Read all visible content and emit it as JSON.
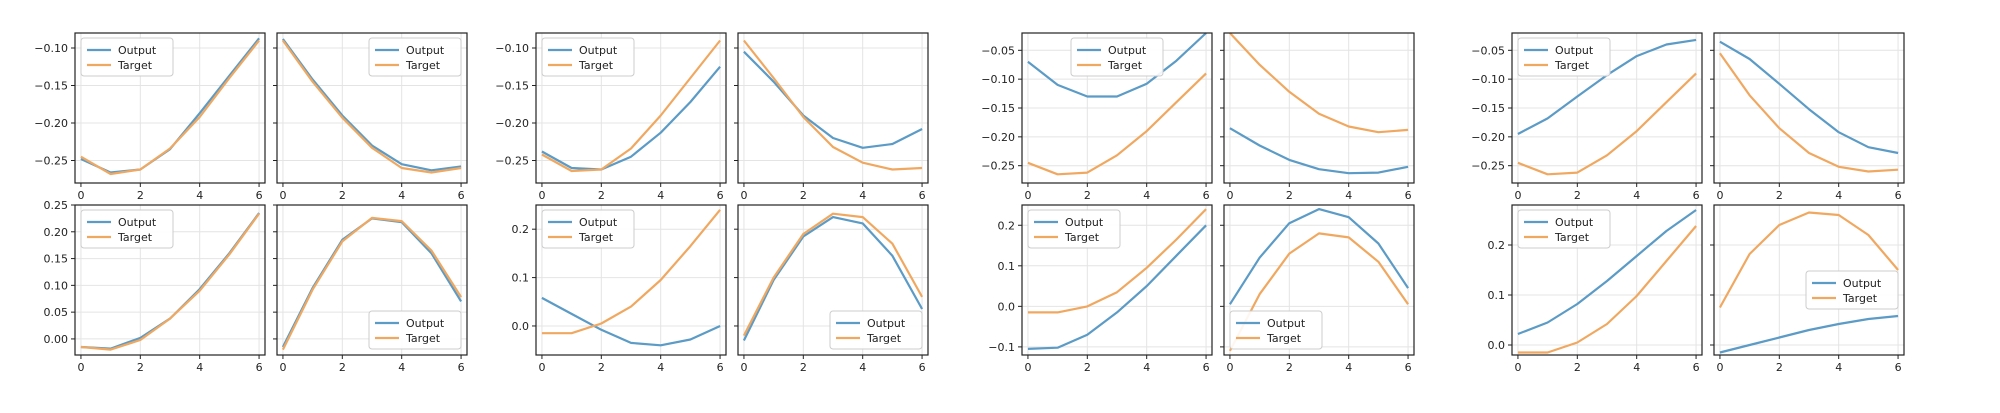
{
  "colors": {
    "output": "#5b9bc6",
    "target": "#f0a860",
    "grid": "#e4e4e4",
    "frame": "#222222"
  },
  "chart_data": [
    {
      "type": "line",
      "x": [
        0,
        1,
        2,
        3,
        4,
        5,
        6
      ],
      "ylim": [
        -0.28,
        -0.08
      ],
      "yticks": [
        -0.25,
        -0.2,
        -0.15,
        -0.1
      ],
      "show_yticks": true,
      "legend": "top-left",
      "series": [
        {
          "name": "Output",
          "values": [
            -0.248,
            -0.266,
            -0.262,
            -0.235,
            -0.187,
            -0.137,
            -0.087
          ]
        },
        {
          "name": "Target",
          "values": [
            -0.245,
            -0.268,
            -0.262,
            -0.234,
            -0.192,
            -0.14,
            -0.09
          ]
        }
      ]
    },
    {
      "type": "line",
      "x": [
        0,
        1,
        2,
        3,
        4,
        5,
        6
      ],
      "ylim": [
        -0.28,
        -0.08
      ],
      "show_yticks": false,
      "legend": "top-right",
      "series": [
        {
          "name": "Output",
          "values": [
            -0.088,
            -0.142,
            -0.19,
            -0.23,
            -0.255,
            -0.263,
            -0.258
          ]
        },
        {
          "name": "Target",
          "values": [
            -0.09,
            -0.145,
            -0.193,
            -0.233,
            -0.26,
            -0.266,
            -0.26
          ]
        }
      ]
    },
    {
      "type": "line",
      "x": [
        0,
        1,
        2,
        3,
        4,
        5,
        6
      ],
      "ylim": [
        -0.03,
        0.25
      ],
      "yticks": [
        0.0,
        0.05,
        0.1,
        0.15,
        0.2,
        0.25
      ],
      "show_yticks": true,
      "legend": "top-left",
      "series": [
        {
          "name": "Output",
          "values": [
            -0.015,
            -0.018,
            0.002,
            0.038,
            0.093,
            0.16,
            0.235
          ]
        },
        {
          "name": "Target",
          "values": [
            -0.015,
            -0.02,
            -0.002,
            0.038,
            0.09,
            0.158,
            0.234
          ]
        }
      ]
    },
    {
      "type": "line",
      "x": [
        0,
        1,
        2,
        3,
        4,
        5,
        6
      ],
      "ylim": [
        -0.03,
        0.25
      ],
      "show_yticks": false,
      "legend": "bottom-right",
      "series": [
        {
          "name": "Output",
          "values": [
            -0.015,
            0.095,
            0.185,
            0.225,
            0.218,
            0.16,
            0.07
          ]
        },
        {
          "name": "Target",
          "values": [
            -0.02,
            0.092,
            0.182,
            0.226,
            0.22,
            0.165,
            0.078
          ]
        }
      ]
    },
    {
      "type": "line",
      "x": [
        0,
        1,
        2,
        3,
        4,
        5,
        6
      ],
      "ylim": [
        -0.28,
        -0.08
      ],
      "yticks": [
        -0.25,
        -0.2,
        -0.15,
        -0.1
      ],
      "show_yticks": true,
      "legend": "top-left",
      "series": [
        {
          "name": "Output",
          "values": [
            -0.238,
            -0.26,
            -0.262,
            -0.245,
            -0.213,
            -0.172,
            -0.125
          ]
        },
        {
          "name": "Target",
          "values": [
            -0.242,
            -0.264,
            -0.262,
            -0.234,
            -0.19,
            -0.14,
            -0.09
          ]
        }
      ]
    },
    {
      "type": "line",
      "x": [
        0,
        1,
        2,
        3,
        4,
        5,
        6
      ],
      "ylim": [
        -0.28,
        -0.08
      ],
      "show_yticks": false,
      "legend": "none",
      "series": [
        {
          "name": "Output",
          "values": [
            -0.105,
            -0.145,
            -0.19,
            -0.22,
            -0.233,
            -0.228,
            -0.208
          ]
        },
        {
          "name": "Target",
          "values": [
            -0.09,
            -0.14,
            -0.192,
            -0.232,
            -0.253,
            -0.262,
            -0.26
          ]
        }
      ]
    },
    {
      "type": "line",
      "x": [
        0,
        1,
        2,
        3,
        4,
        5,
        6
      ],
      "ylim": [
        -0.06,
        0.25
      ],
      "yticks": [
        0.0,
        0.1,
        0.2
      ],
      "show_yticks": true,
      "legend": "top-left",
      "series": [
        {
          "name": "Output",
          "values": [
            0.058,
            0.025,
            -0.008,
            -0.035,
            -0.04,
            -0.028,
            0.0
          ]
        },
        {
          "name": "Target",
          "values": [
            -0.015,
            -0.015,
            0.005,
            0.04,
            0.095,
            0.165,
            0.24
          ]
        }
      ]
    },
    {
      "type": "line",
      "x": [
        0,
        1,
        2,
        3,
        4,
        5,
        6
      ],
      "ylim": [
        -0.06,
        0.25
      ],
      "show_yticks": false,
      "legend": "bottom-right",
      "series": [
        {
          "name": "Output",
          "values": [
            -0.03,
            0.095,
            0.185,
            0.225,
            0.212,
            0.145,
            0.035
          ]
        },
        {
          "name": "Target",
          "values": [
            -0.02,
            0.1,
            0.19,
            0.232,
            0.225,
            0.17,
            0.06
          ]
        }
      ]
    },
    {
      "type": "line",
      "x": [
        0,
        1,
        2,
        3,
        4,
        5,
        6
      ],
      "ylim": [
        -0.28,
        -0.02
      ],
      "yticks": [
        -0.25,
        -0.2,
        -0.15,
        -0.1,
        -0.05
      ],
      "show_yticks": true,
      "legend": "top-center",
      "series": [
        {
          "name": "Output",
          "values": [
            -0.07,
            -0.11,
            -0.13,
            -0.13,
            -0.108,
            -0.068,
            -0.02
          ]
        },
        {
          "name": "Target",
          "values": [
            -0.245,
            -0.265,
            -0.262,
            -0.232,
            -0.19,
            -0.14,
            -0.09
          ]
        }
      ]
    },
    {
      "type": "line",
      "x": [
        0,
        1,
        2,
        3,
        4,
        5,
        6
      ],
      "ylim": [
        -0.28,
        -0.02
      ],
      "show_yticks": false,
      "legend": "none",
      "series": [
        {
          "name": "Output",
          "values": [
            -0.185,
            -0.215,
            -0.24,
            -0.256,
            -0.263,
            -0.262,
            -0.252
          ]
        },
        {
          "name": "Target",
          "values": [
            -0.02,
            -0.075,
            -0.122,
            -0.16,
            -0.182,
            -0.192,
            -0.188
          ]
        }
      ]
    },
    {
      "type": "line",
      "x": [
        0,
        1,
        2,
        3,
        4,
        5,
        6
      ],
      "ylim": [
        -0.12,
        0.25
      ],
      "yticks": [
        -0.1,
        0.0,
        0.1,
        0.2
      ],
      "show_yticks": true,
      "legend": "top-left",
      "series": [
        {
          "name": "Output",
          "values": [
            -0.105,
            -0.102,
            -0.07,
            -0.015,
            0.05,
            0.125,
            0.2
          ]
        },
        {
          "name": "Target",
          "values": [
            -0.015,
            -0.015,
            0.0,
            0.035,
            0.095,
            0.165,
            0.24
          ]
        }
      ]
    },
    {
      "type": "line",
      "x": [
        0,
        1,
        2,
        3,
        4,
        5,
        6
      ],
      "ylim": [
        -0.12,
        0.25
      ],
      "show_yticks": false,
      "legend": "bottom-left",
      "series": [
        {
          "name": "Output",
          "values": [
            0.005,
            0.12,
            0.205,
            0.24,
            0.22,
            0.155,
            0.045
          ]
        },
        {
          "name": "Target",
          "values": [
            -0.11,
            0.03,
            0.13,
            0.18,
            0.17,
            0.11,
            0.005
          ]
        }
      ]
    },
    {
      "type": "line",
      "x": [
        0,
        1,
        2,
        3,
        4,
        5,
        6
      ],
      "ylim": [
        -0.28,
        -0.02
      ],
      "yticks": [
        -0.25,
        -0.2,
        -0.15,
        -0.1,
        -0.05
      ],
      "show_yticks": true,
      "legend": "top-left",
      "series": [
        {
          "name": "Output",
          "values": [
            -0.195,
            -0.168,
            -0.13,
            -0.093,
            -0.06,
            -0.04,
            -0.032
          ]
        },
        {
          "name": "Target",
          "values": [
            -0.245,
            -0.265,
            -0.262,
            -0.232,
            -0.19,
            -0.14,
            -0.09
          ]
        }
      ]
    },
    {
      "type": "line",
      "x": [
        0,
        1,
        2,
        3,
        4,
        5,
        6
      ],
      "ylim": [
        -0.28,
        -0.02
      ],
      "show_yticks": false,
      "legend": "none",
      "series": [
        {
          "name": "Output",
          "values": [
            -0.035,
            -0.065,
            -0.108,
            -0.152,
            -0.192,
            -0.218,
            -0.228
          ]
        },
        {
          "name": "Target",
          "values": [
            -0.055,
            -0.128,
            -0.185,
            -0.228,
            -0.252,
            -0.26,
            -0.257
          ]
        }
      ]
    },
    {
      "type": "line",
      "x": [
        0,
        1,
        2,
        3,
        4,
        5,
        6
      ],
      "ylim": [
        -0.02,
        0.28
      ],
      "yticks": [
        0.0,
        0.1,
        0.2
      ],
      "show_yticks": true,
      "legend": "top-left",
      "series": [
        {
          "name": "Output",
          "values": [
            0.022,
            0.045,
            0.082,
            0.128,
            0.178,
            0.228,
            0.27
          ]
        },
        {
          "name": "Target",
          "values": [
            -0.015,
            -0.015,
            0.005,
            0.042,
            0.098,
            0.168,
            0.238
          ]
        }
      ]
    },
    {
      "type": "line",
      "x": [
        0,
        1,
        2,
        3,
        4,
        5,
        6
      ],
      "ylim": [
        -0.02,
        0.28
      ],
      "show_yticks": false,
      "legend": "center-right",
      "series": [
        {
          "name": "Output",
          "values": [
            -0.015,
            0.0,
            0.015,
            0.03,
            0.042,
            0.052,
            0.058
          ]
        },
        {
          "name": "Target",
          "values": [
            0.075,
            0.182,
            0.24,
            0.265,
            0.26,
            0.22,
            0.15
          ]
        }
      ]
    }
  ]
}
